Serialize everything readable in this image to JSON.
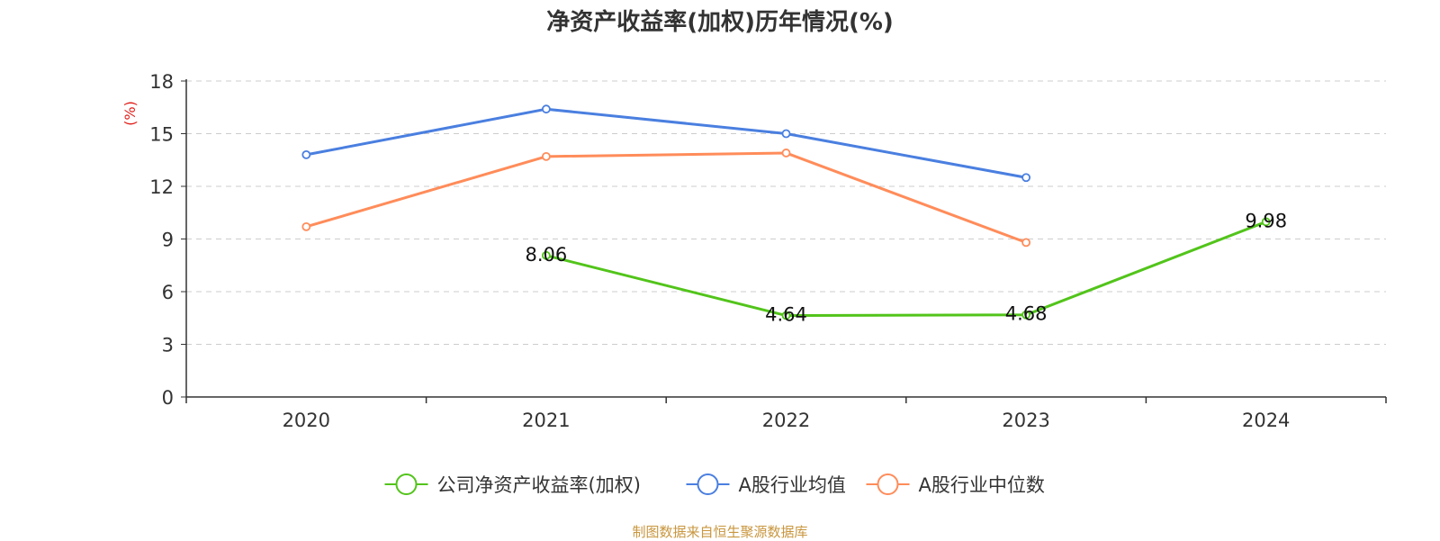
{
  "chart_data": {
    "type": "line",
    "title": "净资产收益率(加权)历年情况(%)",
    "ylabel": "(%)",
    "categories": [
      "2020",
      "2021",
      "2022",
      "2023",
      "2024"
    ],
    "ylim": [
      0,
      18
    ],
    "yticks": [
      0,
      3,
      6,
      9,
      12,
      15,
      18
    ],
    "grid": true,
    "legend_position": "bottom",
    "series": [
      {
        "name": "公司净资产收益率(加权)",
        "color": "#52c41a",
        "values": [
          null,
          8.06,
          4.64,
          4.68,
          9.98
        ],
        "labels": true
      },
      {
        "name": "A股行业均值",
        "color": "#4a7fe0",
        "values": [
          13.8,
          16.4,
          15.0,
          12.5,
          null
        ],
        "labels": false
      },
      {
        "name": "A股行业中位数",
        "color": "#ff8c5a",
        "values": [
          9.7,
          13.7,
          13.9,
          8.8,
          null
        ],
        "labels": false
      }
    ]
  },
  "footer": {
    "source": "制图数据来自恒生聚源数据库"
  }
}
